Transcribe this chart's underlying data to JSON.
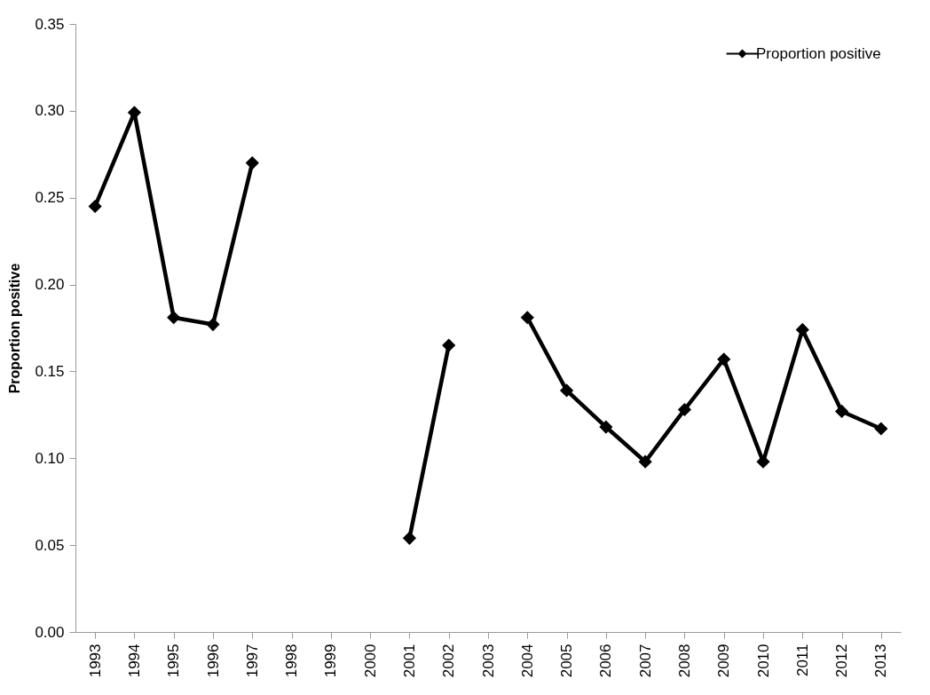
{
  "chart_data": {
    "type": "line",
    "ylabel": "Proportion positive",
    "categories": [
      "1993",
      "1994",
      "1995",
      "1996",
      "1997",
      "1998",
      "1999",
      "2000",
      "2001",
      "2002",
      "2003",
      "2004",
      "2005",
      "2006",
      "2007",
      "2008",
      "2009",
      "2010",
      "2011",
      "2012",
      "2013"
    ],
    "series": [
      {
        "name": "Proportion positive",
        "color": "#000000",
        "values": [
          0.245,
          0.299,
          0.181,
          0.177,
          0.27,
          null,
          null,
          null,
          0.054,
          0.165,
          null,
          0.181,
          0.139,
          0.118,
          0.098,
          0.128,
          0.157,
          0.098,
          0.174,
          0.127,
          0.117
        ]
      }
    ],
    "ylim": [
      0,
      0.35
    ],
    "yticks": [
      {
        "value": 0,
        "label": "0.00"
      },
      0.05,
      {
        "value": 0.1,
        "label": "0.10"
      },
      0.15,
      {
        "value": 0.2,
        "label": "0.20"
      },
      0.25,
      {
        "value": 0.3,
        "label": "0.30"
      },
      0.35
    ],
    "legend": "top right",
    "marker": "diamond",
    "line_style": "solid"
  }
}
